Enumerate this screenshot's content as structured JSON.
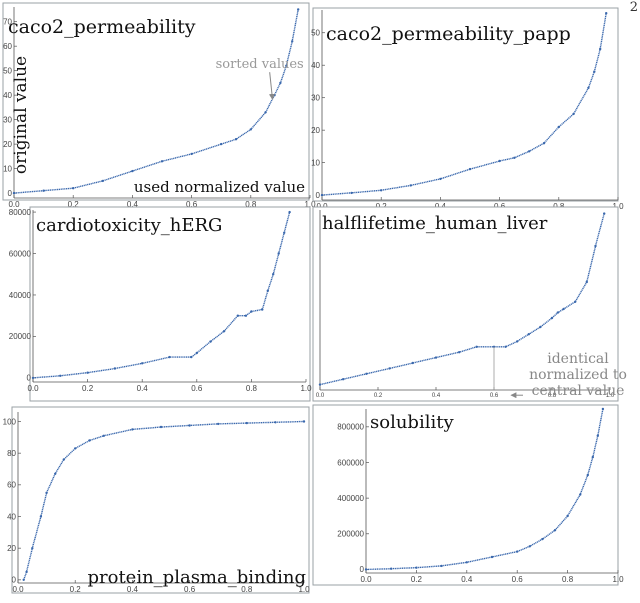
{
  "page_number": "2",
  "chart_data": [
    {
      "id": "caco2_permeability",
      "type": "scatter",
      "title": "caco2_permeability",
      "xlabel": "used normalized value",
      "ylabel": "original value",
      "xlim": [
        0,
        1
      ],
      "ylim": [
        -2,
        76
      ],
      "xticks": [
        "0.0",
        "0.2",
        "0.4",
        "0.6",
        "0.8",
        "1.0"
      ],
      "xtick_values": [
        0,
        0.2,
        0.4,
        0.6,
        0.8,
        1.0
      ],
      "yticks": [
        "0",
        "10",
        "20",
        "30",
        "40",
        "50",
        "60",
        "70"
      ],
      "ytick_values": [
        0,
        10,
        20,
        30,
        40,
        50,
        60,
        70
      ],
      "annotations": [
        {
          "text": "sorted values",
          "x": 0.83,
          "y": 51,
          "arrow_to": [
            0.88,
            36
          ]
        }
      ],
      "series": [
        {
          "x": [
            0,
            0.1,
            0.2,
            0.3,
            0.4,
            0.5,
            0.6,
            0.7,
            0.75,
            0.8,
            0.85,
            0.88,
            0.9,
            0.92,
            0.94,
            0.96
          ],
          "y": [
            0,
            1,
            2,
            5,
            9,
            13,
            16,
            20,
            22,
            26,
            33,
            40,
            45,
            52,
            62,
            75
          ]
        }
      ]
    },
    {
      "id": "caco2_permeability_papp",
      "type": "scatter",
      "title": "caco2_permeability_papp",
      "xlim": [
        0,
        1
      ],
      "ylim": [
        -1.5,
        57
      ],
      "xticks": [
        "0.0",
        "0.2",
        "0.4",
        "0.6",
        "0.8",
        "1.0"
      ],
      "xtick_values": [
        0,
        0.2,
        0.4,
        0.6,
        0.8,
        1.0
      ],
      "yticks": [
        "0",
        "10",
        "20",
        "30",
        "40",
        "50"
      ],
      "ytick_values": [
        0,
        10,
        20,
        30,
        40,
        50
      ],
      "series": [
        {
          "x": [
            0,
            0.1,
            0.2,
            0.3,
            0.4,
            0.5,
            0.6,
            0.65,
            0.7,
            0.75,
            0.8,
            0.85,
            0.9,
            0.92,
            0.94,
            0.96
          ],
          "y": [
            0,
            0.7,
            1.5,
            3,
            5,
            8,
            10.5,
            11.5,
            13.5,
            16,
            21,
            25,
            33,
            38,
            45,
            56
          ]
        }
      ]
    },
    {
      "id": "cardiotoxicity_hERG",
      "type": "scatter",
      "title": "cardiotoxicity_hERG",
      "xlim": [
        0,
        1
      ],
      "ylim": [
        -2000,
        81000
      ],
      "xticks": [
        "0.0",
        "0.2",
        "0.4",
        "0.6",
        "0.8",
        "1.0"
      ],
      "xtick_values": [
        0,
        0.2,
        0.4,
        0.6,
        0.8,
        1.0
      ],
      "yticks": [
        "0",
        "20000",
        "40000",
        "60000",
        "80000"
      ],
      "ytick_values": [
        0,
        20000,
        40000,
        60000,
        80000
      ],
      "series": [
        {
          "x": [
            0,
            0.1,
            0.2,
            0.3,
            0.4,
            0.5,
            0.58,
            0.6,
            0.65,
            0.7,
            0.75,
            0.78,
            0.8,
            0.84,
            0.86,
            0.88,
            0.9,
            0.92,
            0.94
          ],
          "y": [
            0,
            1000,
            2500,
            4500,
            7000,
            10000,
            10000,
            12000,
            17500,
            22500,
            30000,
            30000,
            32000,
            33000,
            42000,
            50000,
            60000,
            70000,
            80000
          ]
        }
      ]
    },
    {
      "id": "halflifetime_human_liver",
      "type": "scatter",
      "title": "halflifetime_human_liver",
      "xlim": [
        0,
        1
      ],
      "ylim": [
        0,
        10
      ],
      "xticks": [
        "0.0",
        "0.2",
        "0.4",
        "0.6",
        "0.8",
        "1.0"
      ],
      "xtick_values": [
        0,
        0.2,
        0.4,
        0.6,
        0.8,
        1.0
      ],
      "yticks": [],
      "ytick_values": [],
      "annotations": [
        {
          "text": "identical normalized to central value",
          "x": 0.77,
          "y": 1.6,
          "arrow_to": [
            0.66,
            1.6
          ]
        }
      ],
      "series": [
        {
          "x": [
            0,
            0.08,
            0.16,
            0.24,
            0.32,
            0.4,
            0.48,
            0.54,
            0.6,
            0.64,
            0.68,
            0.72,
            0.76,
            0.8,
            0.82,
            0.84,
            0.88,
            0.92,
            0.95,
            0.98
          ],
          "y": [
            0.3,
            0.6,
            0.9,
            1.2,
            1.5,
            1.8,
            2.1,
            2.4,
            2.4,
            2.4,
            2.7,
            3.1,
            3.5,
            4.0,
            4.3,
            4.5,
            4.9,
            6.0,
            8.0,
            9.8
          ]
        }
      ]
    },
    {
      "id": "protein_plasma_binding",
      "type": "scatter",
      "title": "protein_plasma_binding",
      "xlim": [
        0,
        1
      ],
      "ylim": [
        -2,
        106
      ],
      "xticks": [
        "0.0",
        "0.2",
        "0.4",
        "0.6",
        "0.8",
        "1.0"
      ],
      "xtick_values": [
        0,
        0.2,
        0.4,
        0.6,
        0.8,
        1.0
      ],
      "yticks": [
        "0",
        "20",
        "40",
        "60",
        "80",
        "100"
      ],
      "ytick_values": [
        0,
        20,
        40,
        60,
        80,
        100
      ],
      "series": [
        {
          "x": [
            0.02,
            0.03,
            0.05,
            0.08,
            0.1,
            0.13,
            0.16,
            0.2,
            0.25,
            0.3,
            0.4,
            0.5,
            0.6,
            0.7,
            0.8,
            0.9,
            1.0
          ],
          "y": [
            0,
            5,
            20,
            40,
            55,
            67,
            76,
            83,
            88,
            91,
            95,
            96.5,
            97.5,
            98.5,
            99,
            99.5,
            100
          ]
        }
      ]
    },
    {
      "id": "solubility",
      "type": "scatter",
      "title": "solubility",
      "xlim": [
        0,
        1
      ],
      "ylim": [
        -20000,
        900000
      ],
      "xticks": [
        "0.0",
        "0.2",
        "0.4",
        "0.6",
        "0.8",
        "1.0"
      ],
      "xtick_values": [
        0,
        0.2,
        0.4,
        0.6,
        0.8,
        1.0
      ],
      "yticks": [
        "0",
        "200000",
        "400000",
        "600000",
        "800000"
      ],
      "ytick_values": [
        0,
        200000,
        400000,
        600000,
        800000
      ],
      "series": [
        {
          "x": [
            0,
            0.1,
            0.2,
            0.3,
            0.4,
            0.5,
            0.6,
            0.65,
            0.7,
            0.75,
            0.8,
            0.85,
            0.88,
            0.9,
            0.92,
            0.94
          ],
          "y": [
            0,
            4000,
            10000,
            20000,
            40000,
            70000,
            100000,
            130000,
            170000,
            220000,
            300000,
            420000,
            530000,
            630000,
            750000,
            900000
          ]
        }
      ]
    }
  ]
}
